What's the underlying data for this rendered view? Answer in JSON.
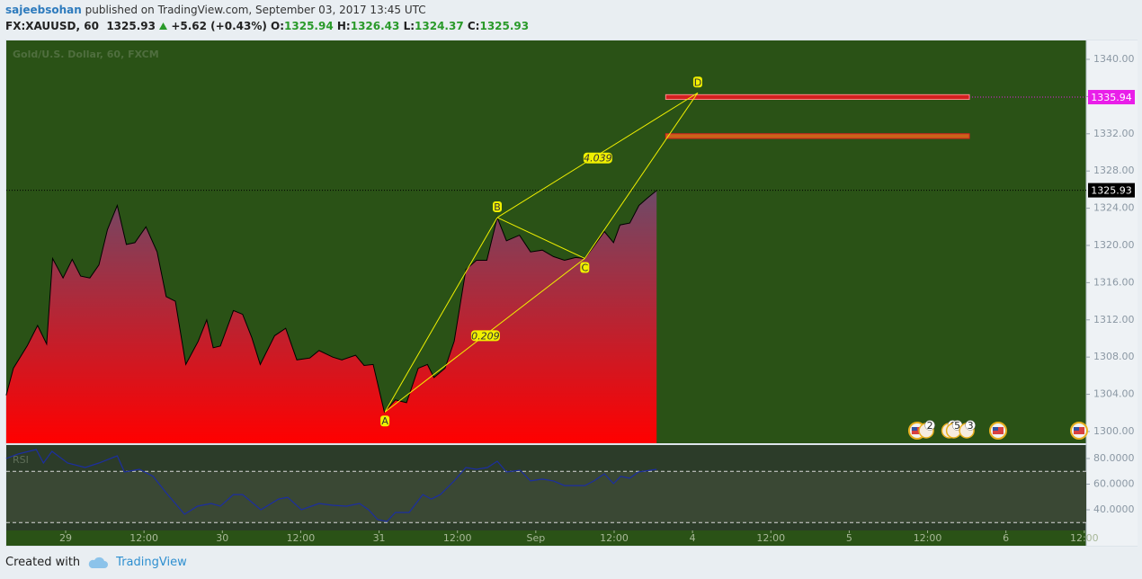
{
  "header": {
    "author": "sajeebsohan",
    "published": "published on TradingView.com, September 03, 2017 13:45 UTC",
    "symbol": "FX:XAUUSD, 60",
    "last": "1325.93",
    "change": "+5.62 (+0.43%)",
    "ohlc": [
      {
        "key": "O:",
        "value": "1325.94"
      },
      {
        "key": "H:",
        "value": "1326.43"
      },
      {
        "key": "L:",
        "value": "1324.37"
      },
      {
        "key": "C:",
        "value": "1325.93"
      }
    ]
  },
  "footer": {
    "created": "Created with",
    "brand": "TradingView"
  },
  "chart_data": [
    {
      "type": "area",
      "title": "Gold/U.S. Dollar, 60, FXCM",
      "color": "#000000",
      "x": [
        -9.1,
        -8.0,
        -5.9,
        -4.3,
        -2.9,
        -2.0,
        -0.4,
        1.0,
        2.3,
        3.7,
        5.1,
        6.4,
        7.9,
        9.3,
        10.6,
        12.3,
        14.0,
        15.4,
        16.8,
        18.4,
        20.3,
        21.6,
        22.6,
        23.7,
        25.7,
        27.1,
        28.5,
        29.8,
        32.0,
        33.7,
        35.4,
        37.4,
        38.8,
        40.9,
        42.3,
        44.4,
        45.7,
        47.1,
        48.8,
        50.5,
        52.2,
        54.0,
        55.4,
        56.4,
        58.1,
        59.5,
        61.3,
        62.9,
        64.5,
        66.1,
        67.5,
        69.5,
        71.2,
        73.0,
        74.7,
        76.4,
        78.1,
        79.5,
        80.8,
        82.5,
        83.9,
        84.9,
        86.4,
        87.8,
        89.1,
        90.5
      ],
      "values": [
        1303.9,
        1306.8,
        1309.2,
        1311.4,
        1309.4,
        1318.6,
        1316.5,
        1318.5,
        1316.7,
        1316.5,
        1317.9,
        1321.7,
        1324.3,
        1320.1,
        1320.3,
        1322.0,
        1319.3,
        1314.5,
        1314.0,
        1307.2,
        1309.7,
        1312.0,
        1309.0,
        1309.2,
        1313.0,
        1312.6,
        1310.1,
        1307.2,
        1310.3,
        1311.1,
        1307.7,
        1307.9,
        1308.7,
        1308.0,
        1307.7,
        1308.2,
        1307.1,
        1307.2,
        1302.1,
        1303.4,
        1303.1,
        1306.8,
        1307.2,
        1305.8,
        1306.8,
        1309.7,
        1317.4,
        1318.4,
        1318.4,
        1323.0,
        1320.5,
        1321.1,
        1319.3,
        1319.5,
        1318.8,
        1318.4,
        1318.7,
        1318.6,
        1319.8,
        1321.5,
        1320.3,
        1322.2,
        1322.4,
        1324.3,
        1325.1,
        1325.9
      ],
      "xlim": [
        -9.09,
        156.3
      ],
      "ylim": [
        1298.74,
        1342.03
      ],
      "xticks": [
        {
          "value": 0,
          "label": "29"
        },
        {
          "value": 12,
          "label": "12:00"
        },
        {
          "value": 24,
          "label": "30"
        },
        {
          "value": 36,
          "label": "12:00"
        },
        {
          "value": 48,
          "label": "31"
        },
        {
          "value": 60,
          "label": "12:00"
        },
        {
          "value": 72,
          "label": "Sep"
        },
        {
          "value": 84,
          "label": "12:00"
        },
        {
          "value": 96,
          "label": "4"
        },
        {
          "value": 108,
          "label": "12:00"
        },
        {
          "value": 120,
          "label": "5"
        },
        {
          "value": 132,
          "label": "12:00"
        },
        {
          "value": 144,
          "label": "6"
        },
        {
          "value": 156,
          "label": "12:00"
        }
      ],
      "yticks": [
        {
          "value": 1300,
          "label": "1300.00"
        },
        {
          "value": 1304,
          "label": "1304.00"
        },
        {
          "value": 1308,
          "label": "1308.00"
        },
        {
          "value": 1312,
          "label": "1312.00"
        },
        {
          "value": 1316,
          "label": "1316.00"
        },
        {
          "value": 1320,
          "label": "1320.00"
        },
        {
          "value": 1324,
          "label": "1324.00"
        },
        {
          "value": 1328,
          "label": "1328.00"
        },
        {
          "value": 1332,
          "label": "1332.00"
        },
        {
          "value": 1336,
          "label": "1336.00"
        },
        {
          "value": 1340,
          "label": "1340.00"
        }
      ],
      "price_lines": [
        {
          "value": 1325.93,
          "color": "#000000"
        },
        {
          "value": 1335.94,
          "color": "#e91ee9"
        }
      ],
      "zones": [
        {
          "x": [
            91.9,
            138.4
          ],
          "y": [
            1335.7,
            1336.2
          ],
          "fill": "#d42020",
          "stroke": "#ff8a8a"
        },
        {
          "x": [
            91.9,
            138.4
          ],
          "y": [
            1331.5,
            1332.0
          ],
          "fill": "#c8641a",
          "stroke": "#e02020"
        }
      ],
      "pattern": {
        "color": "#f0f000",
        "points": [
          {
            "label": "A",
            "x": 48.9,
            "y": 1302.1
          },
          {
            "label": "B",
            "x": 66.1,
            "y": 1323.0
          },
          {
            "label": "C",
            "x": 79.5,
            "y": 1318.6
          },
          {
            "label": "D",
            "x": 96.8,
            "y": 1336.4
          }
        ],
        "ratios": [
          {
            "value": 0.209,
            "x": 64.3,
            "y": 1310.3
          },
          {
            "value": 4.039,
            "x": 81.5,
            "y": 1329.4
          }
        ]
      },
      "events": [
        {
          "x": 130.4
        },
        {
          "x": 131.8,
          "label": 2
        },
        {
          "x": 135.3,
          "label": 6
        },
        {
          "x": 136.0,
          "label": 5
        },
        {
          "x": 138.0,
          "label": 3
        },
        {
          "x": 142.8
        },
        {
          "x": 155.2
        }
      ]
    },
    {
      "type": "line",
      "title": "RSI",
      "color": "#1c2ea0",
      "x": [
        -9.1,
        -7.3,
        -4.5,
        -3.4,
        -2.1,
        0.3,
        3.0,
        5.1,
        7.9,
        9.0,
        11.3,
        13.4,
        15.4,
        18.2,
        20.2,
        22.3,
        23.7,
        25.7,
        27.1,
        29.9,
        32.6,
        34.0,
        36.1,
        38.8,
        40.9,
        43.0,
        45.0,
        46.4,
        47.8,
        49.2,
        50.5,
        52.6,
        54.7,
        56.0,
        57.4,
        59.5,
        61.3,
        62.9,
        64.6,
        66.1,
        67.5,
        69.6,
        71.2,
        73.0,
        74.7,
        76.4,
        79.5,
        80.9,
        82.5,
        83.9,
        85.0,
        86.4,
        87.7,
        90.5
      ],
      "values": [
        80,
        83.5,
        87.0,
        76.5,
        85.6,
        76.5,
        73.0,
        76.5,
        82.1,
        69.5,
        71.6,
        66.0,
        53.3,
        36.5,
        42.8,
        44.9,
        42.8,
        51.9,
        51.9,
        40.0,
        48.4,
        49.8,
        40.0,
        44.9,
        43.5,
        42.8,
        44.9,
        40.0,
        32.3,
        30.9,
        37.9,
        37.9,
        51.9,
        48.4,
        51.9,
        62.5,
        73.0,
        71.6,
        73.0,
        77.9,
        69.5,
        70.9,
        62.5,
        63.9,
        62.5,
        58.9,
        58.9,
        62.5,
        68.1,
        60.4,
        66.0,
        64.6,
        69.5,
        71.6
      ],
      "xlim": [
        -9.09,
        156.3
      ],
      "ylim": [
        23.9,
        90.5
      ],
      "yticks": [
        {
          "value": 40,
          "label": "40.0000"
        },
        {
          "value": 60,
          "label": "60.0000"
        },
        {
          "value": 80,
          "label": "80.0000"
        }
      ],
      "levels": [
        30,
        70
      ]
    }
  ]
}
